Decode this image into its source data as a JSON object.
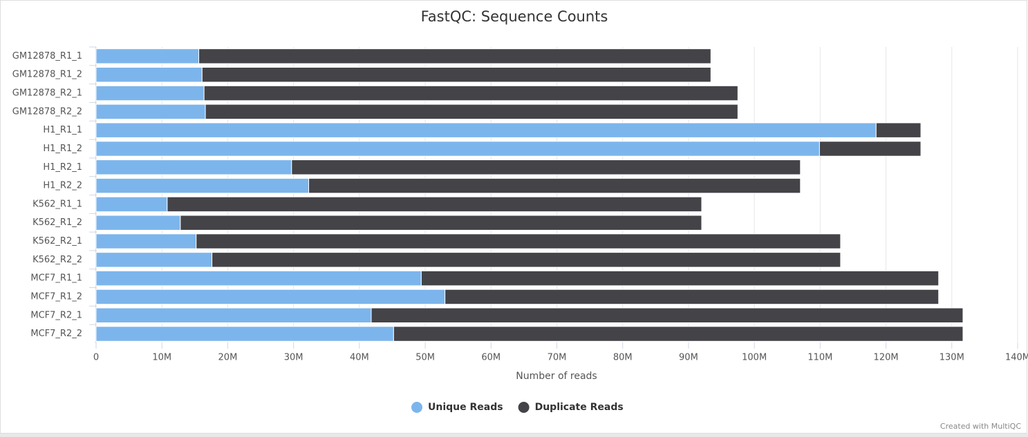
{
  "chart_data": {
    "type": "stacked-horizontal-bar",
    "title": "FastQC: Sequence Counts",
    "x_label": "Number of reads",
    "credit": "Created with MultiQC",
    "categories": [
      "GM12878_R1_1",
      "GM12878_R1_2",
      "GM12878_R2_1",
      "GM12878_R2_2",
      "H1_R1_1",
      "H1_R1_2",
      "H1_R2_1",
      "H1_R2_2",
      "K562_R1_1",
      "K562_R1_2",
      "K562_R2_1",
      "K562_R2_2",
      "MCF7_R1_1",
      "MCF7_R1_2",
      "MCF7_R2_1",
      "MCF7_R2_2"
    ],
    "series": [
      {
        "name": "Unique Reads",
        "color": "#7cb5ec",
        "values": [
          15600000,
          16100000,
          16400000,
          16600000,
          118500000,
          109900000,
          29700000,
          32300000,
          10800000,
          12800000,
          15200000,
          17600000,
          49400000,
          53000000,
          41800000,
          45200000
        ]
      },
      {
        "name": "Duplicate Reads",
        "color": "#434348",
        "values": [
          77800000,
          77300000,
          81100000,
          80900000,
          6800000,
          15400000,
          77300000,
          74700000,
          81200000,
          79200000,
          97900000,
          95500000,
          78600000,
          75000000,
          89900000,
          86500000
        ]
      }
    ],
    "xlim": [
      0,
      140000000
    ],
    "xticks": [
      0,
      {
        "value": 10000000,
        "label": "10M"
      },
      {
        "value": 20000000,
        "label": "20M"
      },
      {
        "value": 30000000,
        "label": "30M"
      },
      {
        "value": 40000000,
        "label": "40M"
      },
      {
        "value": 50000000,
        "label": "50M"
      },
      {
        "value": 60000000,
        "label": "60M"
      },
      {
        "value": 70000000,
        "label": "70M"
      },
      {
        "value": 80000000,
        "label": "80M"
      },
      {
        "value": 90000000,
        "label": "90M"
      },
      {
        "value": 100000000,
        "label": "100M"
      },
      {
        "value": 110000000,
        "label": "110M"
      },
      {
        "value": 120000000,
        "label": "120M"
      },
      {
        "value": 130000000,
        "label": "130M"
      },
      {
        "value": 140000000,
        "label": "140M"
      }
    ],
    "grid": true,
    "legend": "bottom"
  }
}
